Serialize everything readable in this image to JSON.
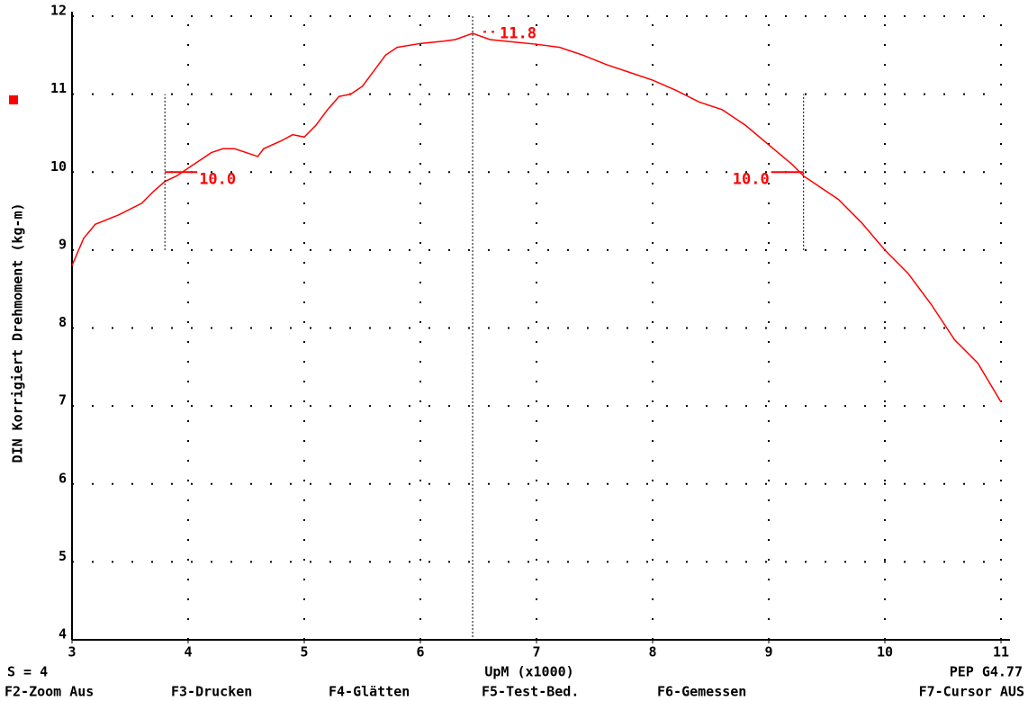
{
  "chart_data": {
    "type": "line",
    "y_label": "DIN Korrigiert Drehmoment (kg-m)",
    "x_label": "UpM (x1000)",
    "x": [
      3.0,
      3.1,
      3.2,
      3.4,
      3.6,
      3.7,
      3.8,
      3.9,
      4.0,
      4.1,
      4.2,
      4.3,
      4.4,
      4.5,
      4.6,
      4.65,
      4.8,
      4.9,
      5.0,
      5.1,
      5.2,
      5.3,
      5.4,
      5.5,
      5.6,
      5.7,
      5.8,
      6.0,
      6.2,
      6.3,
      6.45,
      6.6,
      6.8,
      7.0,
      7.2,
      7.4,
      7.6,
      7.8,
      8.0,
      8.2,
      8.4,
      8.6,
      8.8,
      9.0,
      9.2,
      9.3,
      9.4,
      9.6,
      9.8,
      10.0,
      10.2,
      10.4,
      10.6,
      10.8,
      11.0
    ],
    "series": [
      {
        "color": "#ff0000",
        "values": [
          8.8,
          9.15,
          9.33,
          9.45,
          9.6,
          9.75,
          9.88,
          9.95,
          10.05,
          10.15,
          10.25,
          10.3,
          10.3,
          10.25,
          10.2,
          10.3,
          10.4,
          10.48,
          10.45,
          10.6,
          10.8,
          10.97,
          11.0,
          11.1,
          11.3,
          11.5,
          11.6,
          11.65,
          11.68,
          11.7,
          11.78,
          11.7,
          11.67,
          11.64,
          11.6,
          11.5,
          11.38,
          11.28,
          11.18,
          11.05,
          10.9,
          10.8,
          10.6,
          10.35,
          10.1,
          9.95,
          9.85,
          9.65,
          9.35,
          9.0,
          8.7,
          8.3,
          7.85,
          7.55,
          7.05
        ]
      }
    ],
    "annotations": [
      {
        "x": 3.8,
        "y": 10,
        "label": "10.0"
      },
      {
        "x": 6.45,
        "y": 11.8,
        "label": "11.8"
      },
      {
        "x": 9.3,
        "y": 10,
        "label": "10.0"
      }
    ],
    "cursor_x": 6.45,
    "xlim": [
      3,
      11
    ],
    "xticks": [
      3,
      4,
      5,
      6,
      7,
      8,
      9,
      10,
      11
    ],
    "ylim": [
      4,
      12
    ],
    "yticks": [
      4,
      5,
      6,
      7,
      8,
      9,
      10,
      11,
      12
    ],
    "grid": true
  },
  "status": {
    "left": "S = 4",
    "right": "PEP G4.77"
  },
  "function_keys": [
    "F2-Zoom Aus",
    "F3-Drucken",
    "F4-Glätten",
    "F5-Test-Bed.",
    "F6-Gemessen",
    "F7-Cursor AUS"
  ]
}
